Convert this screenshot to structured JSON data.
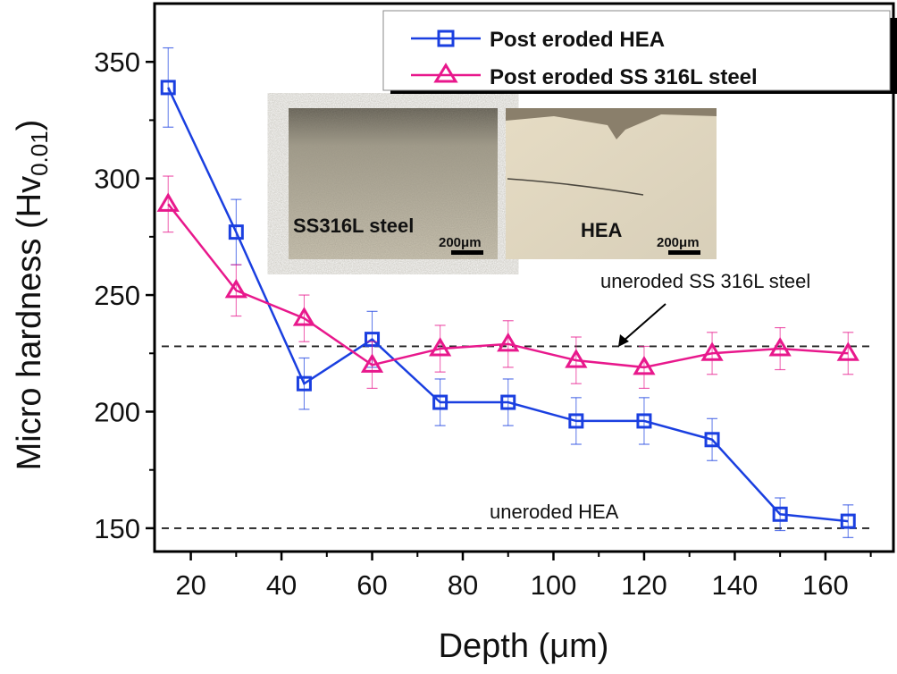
{
  "chart_data": {
    "type": "line",
    "xlabel": "Depth (μm)",
    "ylabel_main": "Micro hardness (Hv",
    "ylabel_sub": "0.01",
    "ylabel_close": ")",
    "xlim": [
      12,
      175
    ],
    "ylim": [
      140,
      375
    ],
    "xticks": [
      20,
      40,
      60,
      80,
      100,
      120,
      140,
      160
    ],
    "yticks": [
      150,
      200,
      250,
      300,
      350
    ],
    "grid": false,
    "legend_position": "top-right",
    "x": [
      15,
      30,
      45,
      60,
      75,
      90,
      105,
      120,
      135,
      150,
      165
    ],
    "series": [
      {
        "name": "Post eroded HEA",
        "color": "#1a3fe0",
        "marker": "square",
        "values": [
          339,
          277,
          212,
          231,
          204,
          204,
          196,
          196,
          188,
          156,
          153
        ],
        "errors": [
          17,
          14,
          11,
          12,
          10,
          10,
          10,
          10,
          9,
          7,
          7
        ]
      },
      {
        "name": "Post eroded SS 316L steel",
        "color": "#e8188c",
        "marker": "triangle",
        "values": [
          289,
          252,
          240,
          220,
          227,
          229,
          222,
          219,
          225,
          227,
          225
        ],
        "errors": [
          12,
          11,
          10,
          10,
          10,
          10,
          10,
          9,
          9,
          9,
          9
        ]
      }
    ],
    "reference_lines": [
      {
        "label": "uneroded SS 316L steel",
        "y": 228
      },
      {
        "label": "uneroded HEA",
        "y": 150
      }
    ],
    "insets": [
      {
        "label": "SS316L steel",
        "scale_bar": "200μm"
      },
      {
        "label": "HEA",
        "scale_bar": "200μm"
      }
    ]
  }
}
